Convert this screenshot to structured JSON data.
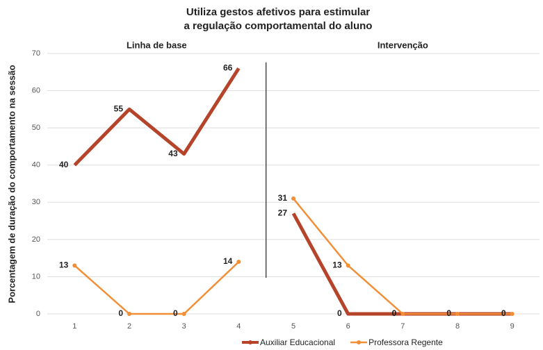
{
  "chart_data": {
    "type": "line",
    "title": [
      "Utiliza gestos afetivos para estimular",
      "a regulação comportamental do aluno"
    ],
    "y_label": "Porcentagem de duração do comportamento na sessão",
    "x": [
      1,
      2,
      3,
      4,
      5,
      6,
      7,
      8,
      9
    ],
    "xlim": [
      0.5,
      9.5
    ],
    "xticks": [
      1,
      2,
      3,
      4,
      5,
      6,
      7,
      8,
      9
    ],
    "ylim": [
      0,
      70
    ],
    "yticks": [
      0,
      10,
      20,
      30,
      40,
      50,
      60,
      70
    ],
    "grid": true,
    "legend": "bottom",
    "phases": [
      {
        "label": "Linha de base",
        "xlim": [
          1,
          4
        ]
      },
      {
        "label": "Intervenção",
        "xlim": [
          5,
          9
        ]
      }
    ],
    "series": [
      {
        "name": "Auxiliar Educacional",
        "color": "#b5442b",
        "values": [
          40,
          55,
          43,
          66,
          27,
          0,
          0,
          0,
          0
        ]
      },
      {
        "name": "Professora Regente",
        "color": "#f28e36",
        "values": [
          13,
          0,
          0,
          14,
          31,
          13,
          0,
          0,
          0
        ]
      }
    ]
  }
}
